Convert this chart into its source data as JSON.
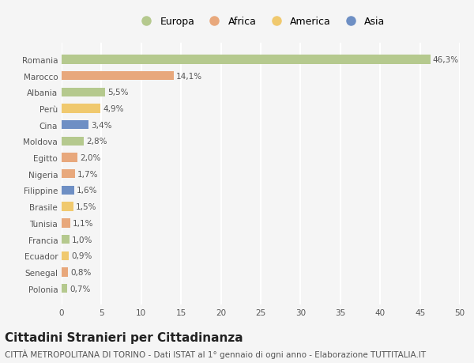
{
  "categories": [
    "Romania",
    "Marocco",
    "Albania",
    "Perù",
    "Cina",
    "Moldova",
    "Egitto",
    "Nigeria",
    "Filippine",
    "Brasile",
    "Tunisia",
    "Francia",
    "Ecuador",
    "Senegal",
    "Polonia"
  ],
  "values": [
    46.3,
    14.1,
    5.5,
    4.9,
    3.4,
    2.8,
    2.0,
    1.7,
    1.6,
    1.5,
    1.1,
    1.0,
    0.9,
    0.8,
    0.7
  ],
  "labels": [
    "46,3%",
    "14,1%",
    "5,5%",
    "4,9%",
    "3,4%",
    "2,8%",
    "2,0%",
    "1,7%",
    "1,6%",
    "1,5%",
    "1,1%",
    "1,0%",
    "0,9%",
    "0,8%",
    "0,7%"
  ],
  "colors": [
    "#b5c98e",
    "#e8a87c",
    "#b5c98e",
    "#f0c96e",
    "#6e8fc4",
    "#b5c98e",
    "#e8a87c",
    "#e8a87c",
    "#6e8fc4",
    "#f0c96e",
    "#e8a87c",
    "#b5c98e",
    "#f0c96e",
    "#e8a87c",
    "#b5c98e"
  ],
  "legend_labels": [
    "Europa",
    "Africa",
    "America",
    "Asia"
  ],
  "legend_colors": [
    "#b5c98e",
    "#e8a87c",
    "#f0c96e",
    "#6e8fc4"
  ],
  "xlim": [
    0,
    50
  ],
  "xticks": [
    0,
    5,
    10,
    15,
    20,
    25,
    30,
    35,
    40,
    45,
    50
  ],
  "title": "Cittadini Stranieri per Cittadinanza",
  "subtitle": "CITTÀ METROPOLITANA DI TORINO - Dati ISTAT al 1° gennaio di ogni anno - Elaborazione TUTTITALIA.IT",
  "background_color": "#f5f5f5",
  "grid_color": "#ffffff",
  "title_fontsize": 11,
  "subtitle_fontsize": 7.5,
  "label_fontsize": 7.5,
  "tick_fontsize": 7.5,
  "bar_height": 0.55
}
